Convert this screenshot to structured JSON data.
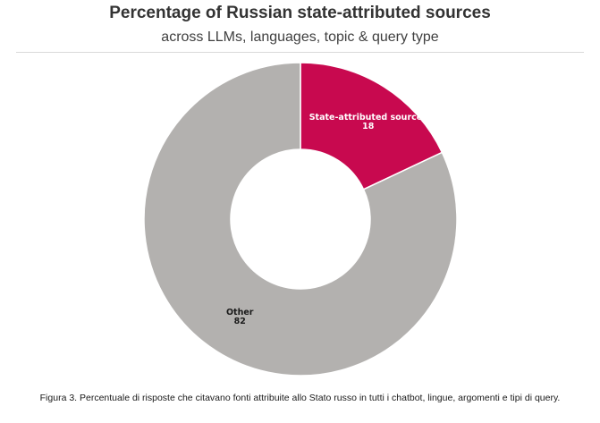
{
  "chart_data": {
    "type": "pie",
    "title": "Percentage of Russian state-attributed sources",
    "subtitle": "across LLMs, languages, topic & query type",
    "donut": true,
    "slices": [
      {
        "label": "State-attributed sources",
        "value": 18,
        "color": "#c8094f"
      },
      {
        "label": "Other",
        "value": 82,
        "color": "#b3b1af"
      }
    ]
  },
  "caption": "Figura 3. Percentuale di risposte che citavano fonti attribuite allo Stato russo in tutti i chatbot, lingue, argomenti e tipi di query."
}
